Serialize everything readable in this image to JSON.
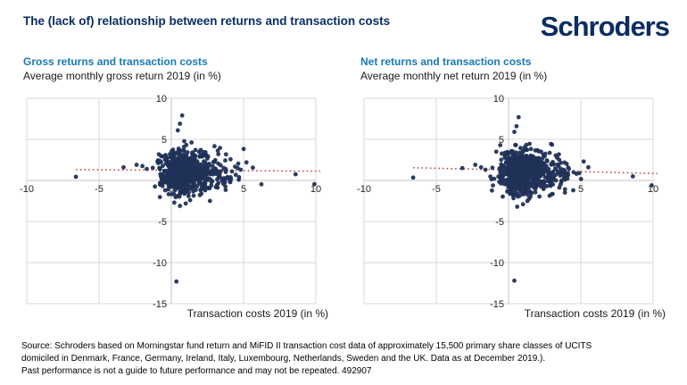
{
  "header": {
    "title": "The (lack of) relationship between returns and transaction costs",
    "logo_text": "Schroders"
  },
  "footer": {
    "line1": "Source: Schroders based on Morningstar fund return and MiFID II transaction cost data of approximately 15,500 primary share classes of UCITS",
    "line2": "domiciled in Denmark, France, Germany, Ireland, Italy, Luxembourg, Netherlands, Sweden and the UK. Data as at December 2019.).",
    "line3": "Past performance is not a guide to future performance and may not be repeated. 492907"
  },
  "colors": {
    "navy_brand": "#0b2d62",
    "teal_subtitle": "#1879b8",
    "dot": "#213159",
    "trend_red": "#c04b4b",
    "grid": "#d9d9d9",
    "zero_axis": "#c4c4c4",
    "tick_text": "#262626"
  },
  "chart_data": [
    {
      "type": "scatter",
      "title": "Gross returns and transaction costs",
      "ylabel": "Average monthly gross return 2019 (in %)",
      "xlabel": "Transaction costs 2019 (in %)",
      "xlim": [
        -10,
        10
      ],
      "ylim": [
        -15,
        10
      ],
      "xticks": [
        -10,
        -5,
        0,
        5,
        10
      ],
      "yticks": [
        10,
        5,
        0,
        -5,
        -10,
        -15
      ],
      "grid": true,
      "cluster": {
        "count": 640,
        "spread_count": 34,
        "seed": 7,
        "x_mean": 0.9,
        "x_sd": 0.8,
        "y_mean": 1.05,
        "y_sd": 1.35
      },
      "outliers": [
        [
          -6.6,
          0.45
        ],
        [
          0.35,
          -12.3
        ],
        [
          0.75,
          7.9
        ],
        [
          0.6,
          6.9
        ],
        [
          0.45,
          6.1
        ],
        [
          5.2,
          2.2
        ],
        [
          8.6,
          0.75
        ],
        [
          9.9,
          -0.45
        ],
        [
          4.6,
          1.5
        ],
        [
          4.8,
          1.3
        ],
        [
          4.2,
          1.1
        ],
        [
          -3.3,
          1.6
        ],
        [
          -2.4,
          1.9
        ],
        [
          -2.0,
          1.75
        ],
        [
          -1.7,
          1.4
        ],
        [
          0.6,
          -3.1
        ],
        [
          1.0,
          -2.8
        ],
        [
          1.3,
          -2.4
        ],
        [
          3.9,
          0.3
        ],
        [
          3.6,
          -0.4
        ]
      ],
      "trend": {
        "x": [
          -6.6,
          10.3
        ],
        "y": [
          1.32,
          1.12
        ]
      }
    },
    {
      "type": "scatter",
      "title": "Net returns and transaction costs",
      "ylabel": "Average monthly net return 2019 (in %)",
      "xlabel": "Transaction costs 2019 (in %)",
      "xlim": [
        -10,
        10
      ],
      "ylim": [
        -15,
        10
      ],
      "xticks": [
        -10,
        -5,
        0,
        5,
        10
      ],
      "yticks": [
        10,
        5,
        0,
        -5,
        -10,
        -15
      ],
      "grid": true,
      "cluster": {
        "count": 640,
        "spread_count": 34,
        "seed": 13,
        "x_mean": 0.9,
        "x_sd": 0.8,
        "y_mean": 0.85,
        "y_sd": 1.35
      },
      "outliers": [
        [
          -6.6,
          0.35
        ],
        [
          0.4,
          -12.2
        ],
        [
          0.7,
          7.7
        ],
        [
          0.55,
          6.6
        ],
        [
          0.4,
          5.9
        ],
        [
          5.2,
          2.3
        ],
        [
          8.6,
          0.5
        ],
        [
          9.9,
          -0.6
        ],
        [
          4.5,
          1.0
        ],
        [
          4.7,
          0.8
        ],
        [
          4.1,
          0.9
        ],
        [
          -3.2,
          1.5
        ],
        [
          -2.3,
          1.9
        ],
        [
          -1.9,
          1.6
        ],
        [
          -1.6,
          1.3
        ],
        [
          0.6,
          -3.2
        ],
        [
          1.0,
          -2.9
        ],
        [
          1.3,
          -2.5
        ],
        [
          3.9,
          0.1
        ],
        [
          3.6,
          -0.5
        ]
      ],
      "trend": {
        "x": [
          -6.6,
          10.3
        ],
        "y": [
          1.55,
          0.85
        ]
      }
    }
  ]
}
